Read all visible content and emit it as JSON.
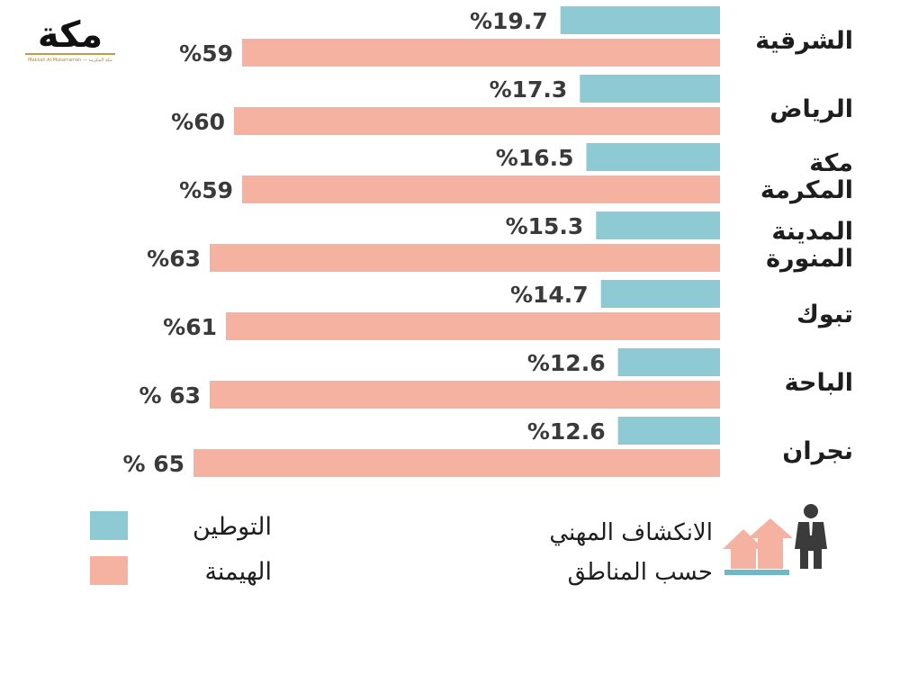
{
  "logo": {
    "text": "مكة",
    "subtitle": "Makkah Al-Mukarramah — مكة المكرمة",
    "color": "#111111",
    "accent": "#c59a45"
  },
  "chart_data": {
    "type": "bar",
    "orientation": "horizontal",
    "direction": "right-to-left",
    "title": [
      "الانكشاف المهني",
      "حسب المناطق"
    ],
    "categories": [
      [
        "الشرقية"
      ],
      [
        "الرياض"
      ],
      [
        "مكة",
        "المكرمة"
      ],
      [
        "المدينة",
        "المنورة"
      ],
      [
        "تبوك"
      ],
      [
        "الباحة"
      ],
      [
        "نجران"
      ]
    ],
    "series": [
      {
        "name": "التوطين",
        "color": "#8ecad3",
        "values": [
          19.7,
          17.3,
          16.5,
          15.3,
          14.7,
          12.6,
          12.6
        ],
        "labels": [
          "%19.7",
          "%17.3",
          "%16.5",
          "%15.3",
          "%14.7",
          "%12.6",
          "%12.6"
        ]
      },
      {
        "name": "الهيمنة",
        "color": "#f5b2a1",
        "values": [
          59,
          60,
          59,
          63,
          61,
          63,
          65
        ],
        "labels": [
          "%59",
          "%60",
          "%59",
          "%63",
          "%61",
          "% 63",
          "% 65"
        ]
      }
    ],
    "legend_position": "bottom-left",
    "xlabel": "",
    "ylabel": ""
  }
}
